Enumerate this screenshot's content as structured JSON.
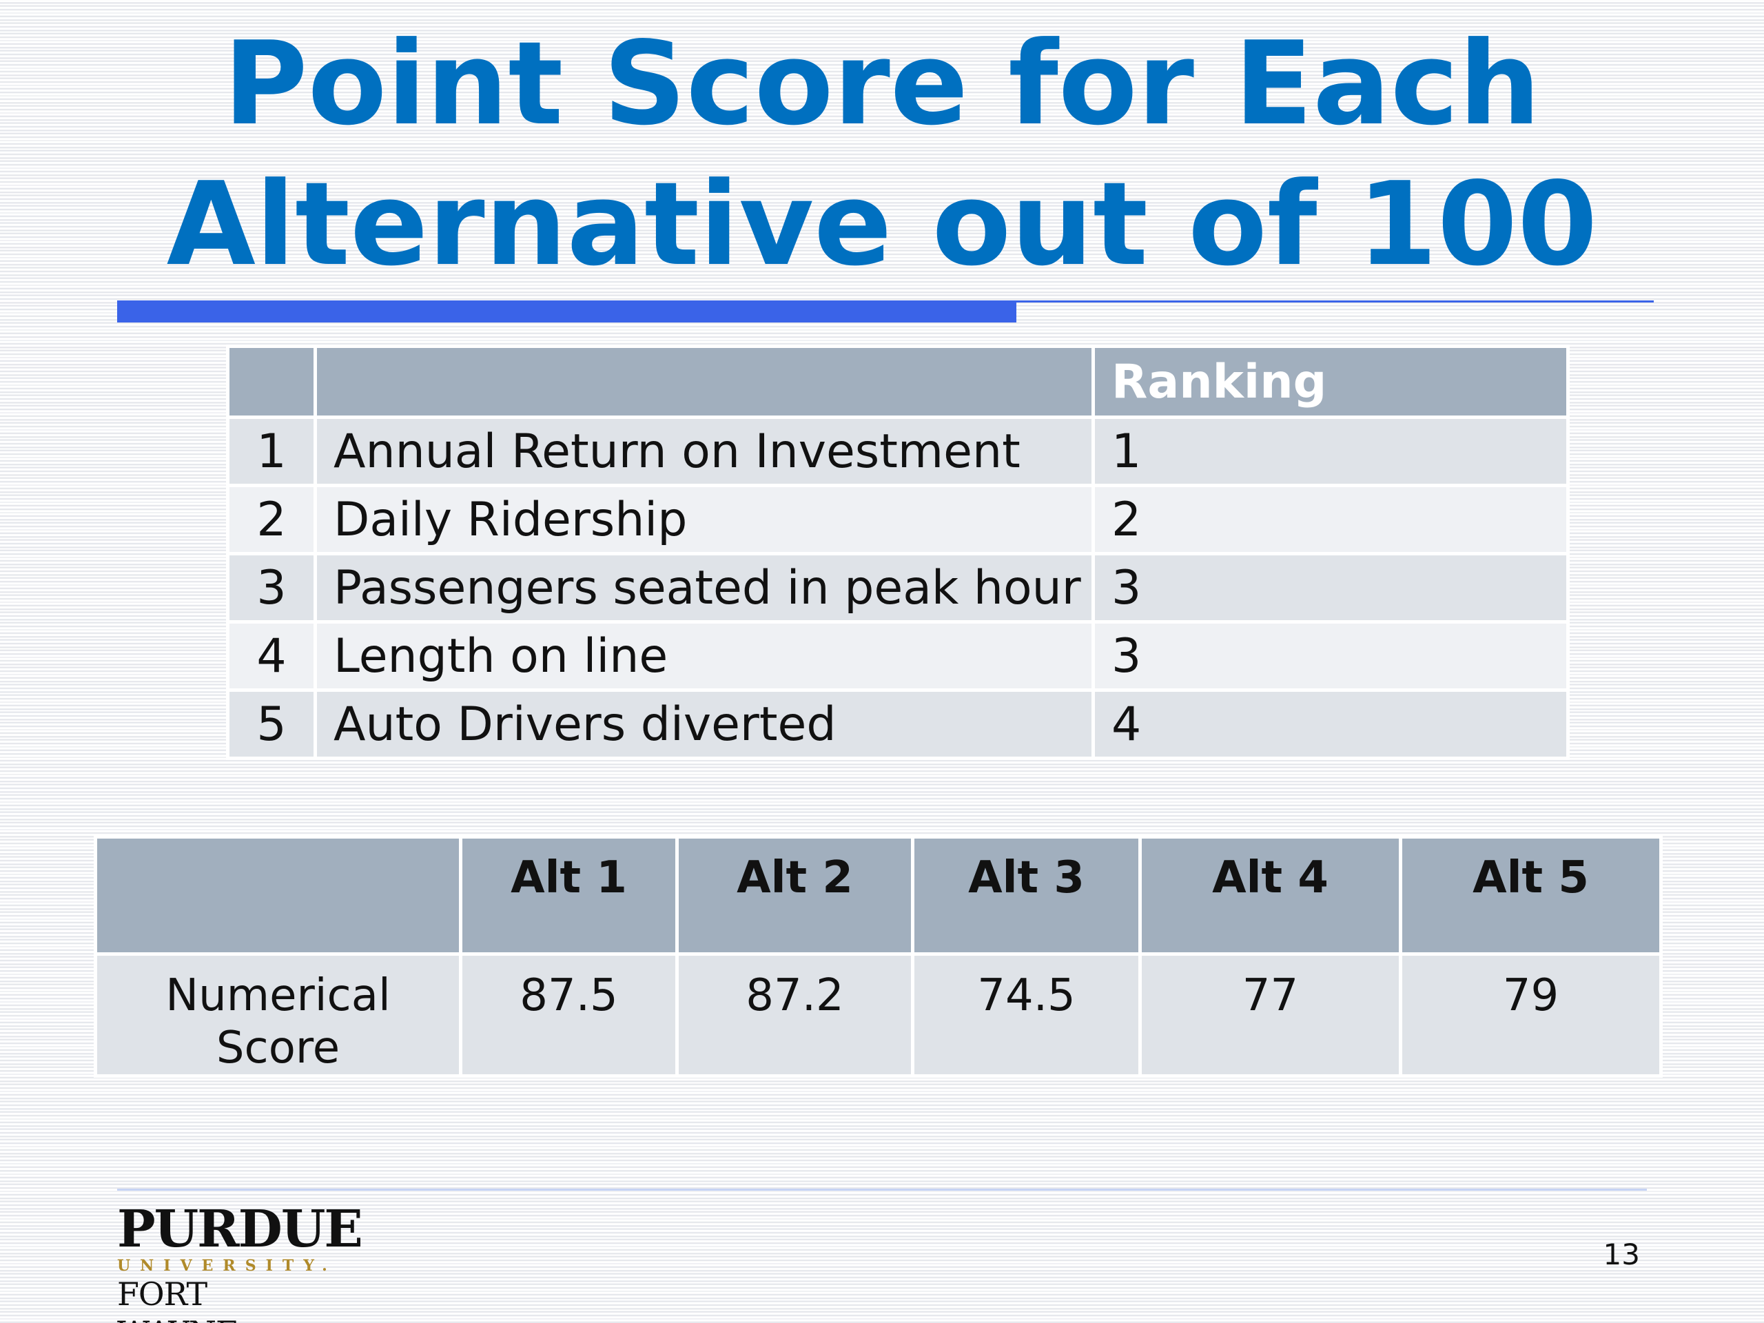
{
  "slide": {
    "title": "Point Score for Each Alternative out of 100",
    "page_number": "13"
  },
  "ranking_table": {
    "header": {
      "num": "",
      "criterion": "",
      "ranking": "Ranking"
    },
    "rows": [
      {
        "num": "1",
        "criterion": "Annual Return on Investment",
        "ranking": "1"
      },
      {
        "num": "2",
        "criterion": "Daily Ridership",
        "ranking": "2"
      },
      {
        "num": "3",
        "criterion": "Passengers seated in peak hour",
        "ranking": "3"
      },
      {
        "num": "4",
        "criterion": "Length on line",
        "ranking": "3"
      },
      {
        "num": "5",
        "criterion": "Auto Drivers diverted",
        "ranking": "4"
      }
    ]
  },
  "score_table": {
    "headers": [
      "",
      "Alt 1",
      "Alt 2",
      "Alt 3",
      "Alt 4",
      "Alt 5"
    ],
    "row_label": "Numerical Score",
    "scores": [
      "87.5",
      "87.2",
      "74.5",
      "77",
      "79"
    ]
  },
  "logo": {
    "main": "PURDUE",
    "sub": "UNIVERSITY.",
    "campus": "FORT WAYNE"
  },
  "colors": {
    "title": "#0070c0",
    "accent_rule": "#3a63e8",
    "table_header": "#a1afbe",
    "table_row_dark": "#dfe3e8",
    "table_row_light": "#eff1f4",
    "logo_gold": "#b08a2a"
  }
}
